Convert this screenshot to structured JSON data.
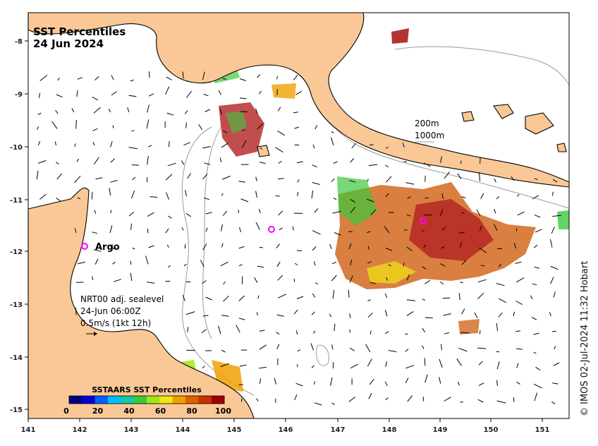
{
  "title": {
    "line1": "SST Percentiles",
    "line2": "24 Jun 2024"
  },
  "depth_labels": {
    "first": "200m",
    "second": "1000m"
  },
  "argo_label": "Argo",
  "current_note": {
    "line1": "NRT00 adj. sealevel",
    "line2": "24-Jun 06:00Z",
    "line3": "0.5m/s (1kt 12h)"
  },
  "legend": {
    "title": "SSTAARS SST Percentiles",
    "ticks": [
      "0",
      "20",
      "40",
      "60",
      "80",
      "100"
    ],
    "colors": [
      "#00007f",
      "#0000d4",
      "#0060ff",
      "#00bcff",
      "#14c8a0",
      "#3cc83c",
      "#a0e614",
      "#f0e614",
      "#f0a000",
      "#e06000",
      "#c83200",
      "#a00000"
    ]
  },
  "axes": {
    "lon_ticks": [
      "141",
      "142",
      "143",
      "144",
      "145",
      "146",
      "147",
      "148",
      "149",
      "150",
      "151"
    ],
    "lat_ticks": [
      "-8",
      "-9",
      "-10",
      "-11",
      "-12",
      "-13",
      "-14",
      "-15"
    ]
  },
  "credit": "© IMOS 02-Jul-2024 11:32 Hobart",
  "colors": {
    "land": "#fac897",
    "ocean": "#ffffff",
    "contour": "#9a9a9a",
    "argo_marker": "#ff00ff"
  }
}
